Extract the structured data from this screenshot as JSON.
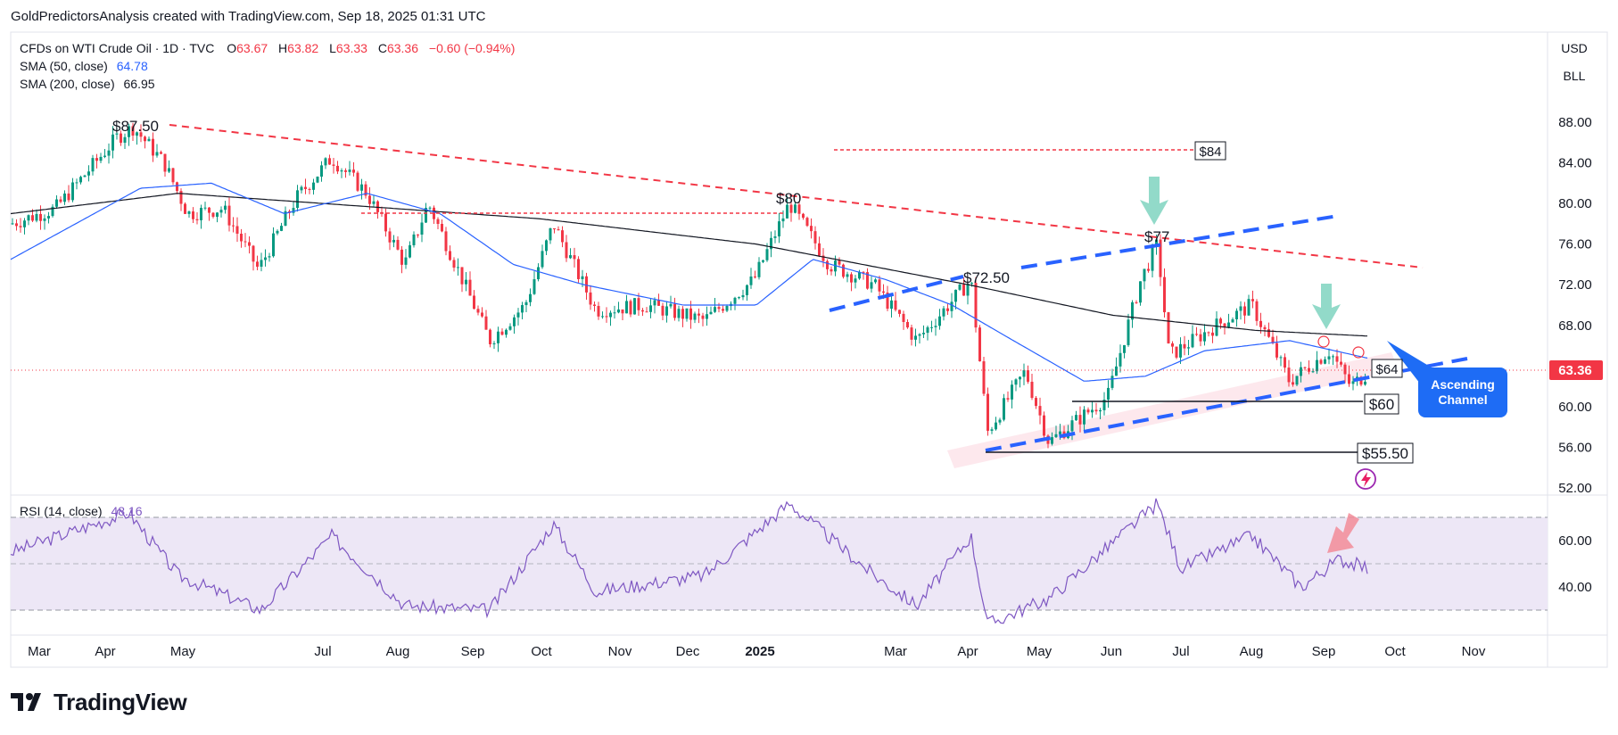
{
  "header": {
    "text": "GoldPredictorsAnalysis created with TradingView.com, Sep 18, 2025 01:31 UTC"
  },
  "legend": {
    "symbol": "CFDs on WTI Crude Oil · 1D · TVC",
    "o_label": "O",
    "o_value": "63.67",
    "h_label": "H",
    "h_value": "63.82",
    "l_label": "L",
    "l_value": "63.33",
    "c_label": "C",
    "c_value": "63.36",
    "change": "−0.60 (−0.94%)",
    "sma50_label": "SMA (50, close)",
    "sma50_value": "64.78",
    "sma200_label": "SMA (200, close)",
    "sma200_value": "66.95",
    "rsi_label": "RSI (14, close)",
    "rsi_value": "48.16"
  },
  "scale_buttons": {
    "currency": "USD",
    "unit": "BLL"
  },
  "price_axis": {
    "ticks": [
      "88.00",
      "84.00",
      "80.00",
      "76.00",
      "72.00",
      "68.00",
      "64.00",
      "60.00",
      "56.00",
      "52.00"
    ],
    "current_label": "63.36",
    "current_color": "#f23645"
  },
  "rsi_axis": {
    "ticks": [
      "60.00",
      "40.00"
    ]
  },
  "time_axis": {
    "labels": [
      "Mar",
      "Apr",
      "May",
      "Jul",
      "Aug",
      "Sep",
      "Oct",
      "Nov",
      "Dec",
      "2025",
      "Mar",
      "Apr",
      "May",
      "Jun",
      "Jul",
      "Aug",
      "Sep",
      "Oct",
      "Nov"
    ]
  },
  "annotations": {
    "high_1": "$87.50",
    "high_2": "$80",
    "high_3": "$72.50",
    "high_4": "$77",
    "box_84": "$84",
    "box_64": "$64",
    "box_60": "$60",
    "box_5550": "$55.50",
    "callout": "Ascending Channel"
  },
  "colors": {
    "up": "#089981",
    "down": "#f23645",
    "sma50": "#2962ff",
    "sma200": "#131722",
    "resistance": "#f23645",
    "channel": "#2962ff",
    "rsi_line": "#7e57c2",
    "rsi_band": "#ede7f6",
    "arrow_green": "#7fd3c0",
    "arrow_red": "#f28b98",
    "callout_bg": "#1e6cf5"
  },
  "footer": {
    "brand": "TradingView"
  },
  "chart_data": {
    "type": "candlestick",
    "title": "CFDs on WTI Crude Oil · 1D · TVC",
    "ylim": [
      52,
      90
    ],
    "current_price": 63.36,
    "price_path_approx": [
      {
        "date": "2024-02-20",
        "close": 78.0
      },
      {
        "date": "2024-03-10",
        "close": 79.5
      },
      {
        "date": "2024-04-05",
        "close": 86.5
      },
      {
        "date": "2024-04-12",
        "close": 87.5
      },
      {
        "date": "2024-04-25",
        "close": 84.0
      },
      {
        "date": "2024-05-05",
        "close": 79.0
      },
      {
        "date": "2024-05-20",
        "close": 79.5
      },
      {
        "date": "2024-06-04",
        "close": 73.5
      },
      {
        "date": "2024-06-20",
        "close": 80.5
      },
      {
        "date": "2024-07-05",
        "close": 84.5
      },
      {
        "date": "2024-07-20",
        "close": 81.0
      },
      {
        "date": "2024-08-05",
        "close": 74.0
      },
      {
        "date": "2024-08-15",
        "close": 80.0
      },
      {
        "date": "2024-09-10",
        "close": 66.5
      },
      {
        "date": "2024-09-25",
        "close": 70.0
      },
      {
        "date": "2024-10-07",
        "close": 78.0
      },
      {
        "date": "2024-10-25",
        "close": 69.5
      },
      {
        "date": "2024-11-15",
        "close": 70.0
      },
      {
        "date": "2024-12-10",
        "close": 68.5
      },
      {
        "date": "2024-12-31",
        "close": 72.5
      },
      {
        "date": "2025-01-15",
        "close": 80.0
      },
      {
        "date": "2025-02-01",
        "close": 74.0
      },
      {
        "date": "2025-02-20",
        "close": 72.0
      },
      {
        "date": "2025-03-10",
        "close": 66.5
      },
      {
        "date": "2025-04-02",
        "close": 72.5
      },
      {
        "date": "2025-04-09",
        "close": 57.5
      },
      {
        "date": "2025-04-25",
        "close": 63.5
      },
      {
        "date": "2025-05-05",
        "close": 56.5
      },
      {
        "date": "2025-05-30",
        "close": 61.0
      },
      {
        "date": "2025-06-13",
        "close": 72.5
      },
      {
        "date": "2025-06-20",
        "close": 76.0
      },
      {
        "date": "2025-06-25",
        "close": 65.0
      },
      {
        "date": "2025-07-15",
        "close": 68.0
      },
      {
        "date": "2025-07-30",
        "close": 70.0
      },
      {
        "date": "2025-08-15",
        "close": 62.5
      },
      {
        "date": "2025-09-01",
        "close": 65.5
      },
      {
        "date": "2025-09-10",
        "close": 62.0
      },
      {
        "date": "2025-09-17",
        "close": 63.36
      }
    ],
    "sma50_path_approx": [
      {
        "date": "2024-02-20",
        "value": 74.5
      },
      {
        "date": "2024-04-15",
        "value": 81.5
      },
      {
        "date": "2024-05-15",
        "value": 82.0
      },
      {
        "date": "2024-06-15",
        "value": 79.0
      },
      {
        "date": "2024-07-20",
        "value": 81.0
      },
      {
        "date": "2024-08-20",
        "value": 79.0
      },
      {
        "date": "2024-09-20",
        "value": 74.0
      },
      {
        "date": "2024-10-20",
        "value": 72.0
      },
      {
        "date": "2024-12-01",
        "value": 70.0
      },
      {
        "date": "2025-01-01",
        "value": 70.0
      },
      {
        "date": "2025-01-25",
        "value": 74.5
      },
      {
        "date": "2025-02-25",
        "value": 72.5
      },
      {
        "date": "2025-03-25",
        "value": 70.0
      },
      {
        "date": "2025-04-20",
        "value": 66.5
      },
      {
        "date": "2025-05-20",
        "value": 62.5
      },
      {
        "date": "2025-06-15",
        "value": 63.0
      },
      {
        "date": "2025-07-10",
        "value": 65.5
      },
      {
        "date": "2025-08-15",
        "value": 66.5
      },
      {
        "date": "2025-09-17",
        "value": 64.78
      }
    ],
    "sma200_path_approx": [
      {
        "date": "2024-02-20",
        "value": 79.0
      },
      {
        "date": "2024-05-01",
        "value": 81.0
      },
      {
        "date": "2024-08-01",
        "value": 79.5
      },
      {
        "date": "2024-10-01",
        "value": 78.5
      },
      {
        "date": "2025-01-01",
        "value": 76.0
      },
      {
        "date": "2025-02-15",
        "value": 74.0
      },
      {
        "date": "2025-04-01",
        "value": 72.0
      },
      {
        "date": "2025-06-01",
        "value": 69.0
      },
      {
        "date": "2025-08-01",
        "value": 67.5
      },
      {
        "date": "2025-09-17",
        "value": 66.95
      }
    ],
    "rsi": {
      "name": "RSI (14, close)",
      "last": 48.16,
      "upper_band": 70,
      "middle": 50,
      "lower_band": 30,
      "path_approx": [
        {
          "date": "2024-02-20",
          "value": 55
        },
        {
          "date": "2024-04-10",
          "value": 72
        },
        {
          "date": "2024-05-01",
          "value": 45
        },
        {
          "date": "2024-06-05",
          "value": 30
        },
        {
          "date": "2024-07-05",
          "value": 62
        },
        {
          "date": "2024-08-05",
          "value": 32
        },
        {
          "date": "2024-09-10",
          "value": 30
        },
        {
          "date": "2024-10-07",
          "value": 67
        },
        {
          "date": "2024-10-25",
          "value": 38
        },
        {
          "date": "2024-12-10",
          "value": 45
        },
        {
          "date": "2025-01-15",
          "value": 76
        },
        {
          "date": "2025-02-20",
          "value": 45
        },
        {
          "date": "2025-03-10",
          "value": 32
        },
        {
          "date": "2025-04-02",
          "value": 62
        },
        {
          "date": "2025-04-09",
          "value": 24
        },
        {
          "date": "2025-05-05",
          "value": 35
        },
        {
          "date": "2025-06-20",
          "value": 76
        },
        {
          "date": "2025-06-30",
          "value": 48
        },
        {
          "date": "2025-07-30",
          "value": 62
        },
        {
          "date": "2025-08-20",
          "value": 40
        },
        {
          "date": "2025-09-05",
          "value": 52
        },
        {
          "date": "2025-09-17",
          "value": 48.16
        }
      ]
    },
    "levels": [
      {
        "label": "$84",
        "price": 84.5
      },
      {
        "label": "$64",
        "price": 63.8
      },
      {
        "label": "$60",
        "price": 60.3
      },
      {
        "label": "$55.50",
        "price": 55.5
      }
    ],
    "swing_highs": [
      {
        "label": "$87.50",
        "date": "2024-04-12",
        "price": 87.5
      },
      {
        "label": "$80",
        "date": "2025-01-15",
        "price": 80.0
      },
      {
        "label": "$72.50",
        "date": "2025-04-02",
        "price": 72.5
      },
      {
        "label": "$77",
        "date": "2025-06-20",
        "price": 77.0
      }
    ],
    "grid": false,
    "legend_position": "top-left"
  }
}
